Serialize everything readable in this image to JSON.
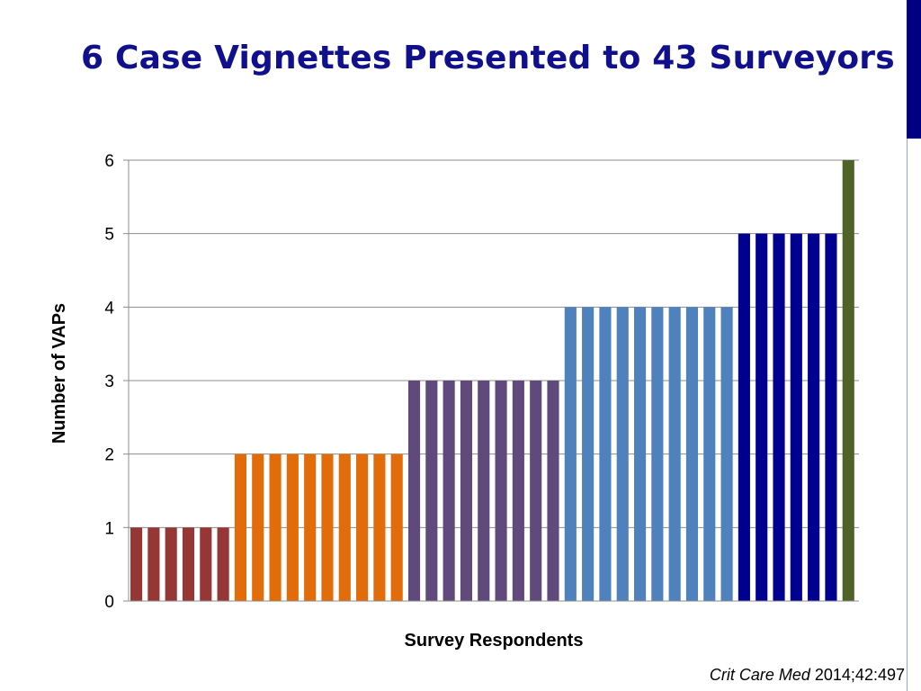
{
  "slide": {
    "title": "6 Case Vignettes Presented to 43 Surveyors",
    "citation_journal": "Crit Care Med",
    "citation_ref": " 2014;42:497"
  },
  "chart_data": {
    "type": "bar",
    "title": "",
    "xlabel": "Survey Respondents",
    "ylabel": "Number of VAPs",
    "ylim": [
      0,
      6
    ],
    "yticks": [
      0,
      1,
      2,
      3,
      4,
      5,
      6
    ],
    "grid": true,
    "legend": "none",
    "groups": [
      {
        "value": 1,
        "count": 6,
        "color": "#953735"
      },
      {
        "value": 2,
        "count": 10,
        "color": "#e36c0a"
      },
      {
        "value": 3,
        "count": 9,
        "color": "#604a7b"
      },
      {
        "value": 4,
        "count": 10,
        "color": "#4f81bd"
      },
      {
        "value": 5,
        "count": 6,
        "color": "#000090"
      },
      {
        "value": 6,
        "count": 1,
        "color": "#4f6228"
      }
    ],
    "values": [
      1,
      1,
      1,
      1,
      1,
      1,
      2,
      2,
      2,
      2,
      2,
      2,
      2,
      2,
      2,
      2,
      3,
      3,
      3,
      3,
      3,
      3,
      3,
      3,
      3,
      4,
      4,
      4,
      4,
      4,
      4,
      4,
      4,
      4,
      4,
      5,
      5,
      5,
      5,
      5,
      5,
      6
    ]
  }
}
